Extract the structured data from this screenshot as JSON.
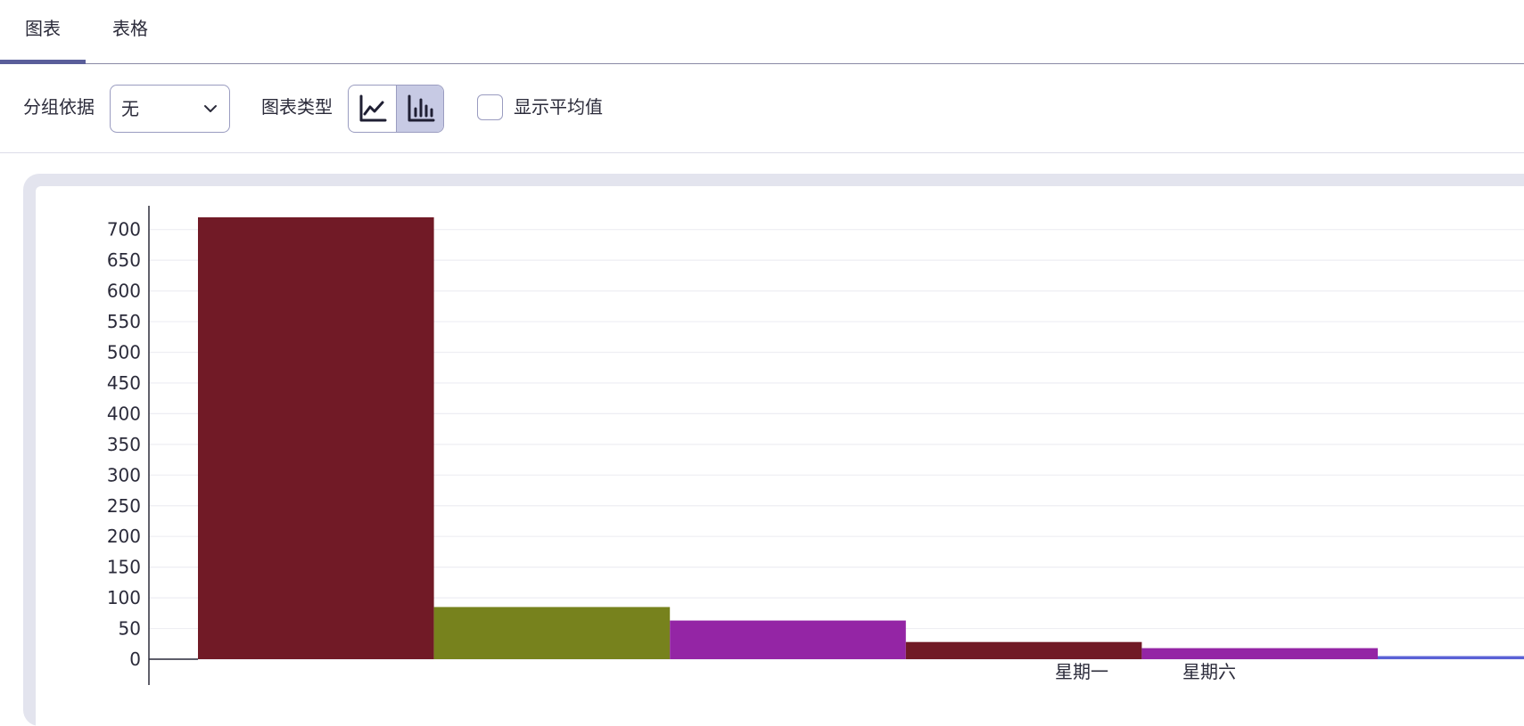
{
  "tabs": [
    {
      "label": "图表",
      "active": true
    },
    {
      "label": "表格",
      "active": false
    }
  ],
  "toolbar": {
    "group_by_label": "分组依据",
    "group_by_value": "无",
    "chart_type_label": "图表类型",
    "chart_type_selected": "bar",
    "show_average_label": "显示平均值",
    "show_average_checked": false
  },
  "colors": {
    "accent": "#5a5e9a",
    "segment_selected": "#c7cae4",
    "bar_palette": [
      "#711a26",
      "#77821d",
      "#9425a5",
      "#711a26",
      "#9425a5",
      "#5a61d6"
    ]
  },
  "chart_data": {
    "type": "bar",
    "y_ticks": [
      0,
      50,
      100,
      150,
      200,
      250,
      300,
      350,
      400,
      450,
      500,
      550,
      600,
      650,
      700
    ],
    "ylim": [
      0,
      735
    ],
    "grid": true,
    "x_tick_labels_visible": [
      "星期一",
      "星期六"
    ],
    "values": [
      720,
      85,
      63,
      28,
      18,
      5
    ]
  }
}
